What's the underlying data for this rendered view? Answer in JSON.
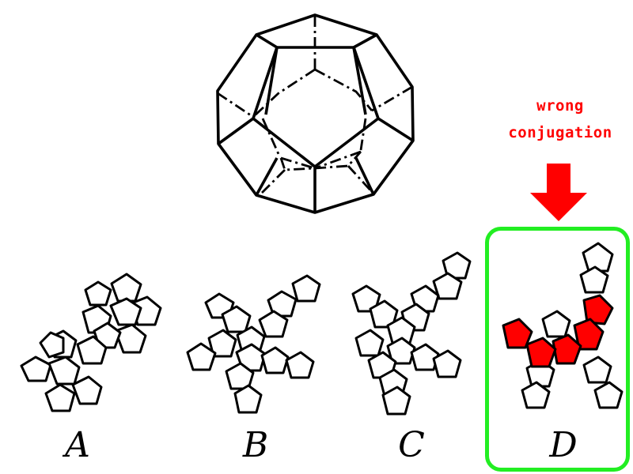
{
  "annotation": {
    "line1": "wrong",
    "line2": "conjugation"
  },
  "options": [
    {
      "key": "a",
      "label": "A"
    },
    {
      "key": "b",
      "label": "B"
    },
    {
      "key": "c",
      "label": "C"
    },
    {
      "key": "d",
      "label": "D"
    }
  ],
  "colors": {
    "highlight_box": "#22ee22",
    "wrong": "#ff0000",
    "outline": "#000000"
  }
}
